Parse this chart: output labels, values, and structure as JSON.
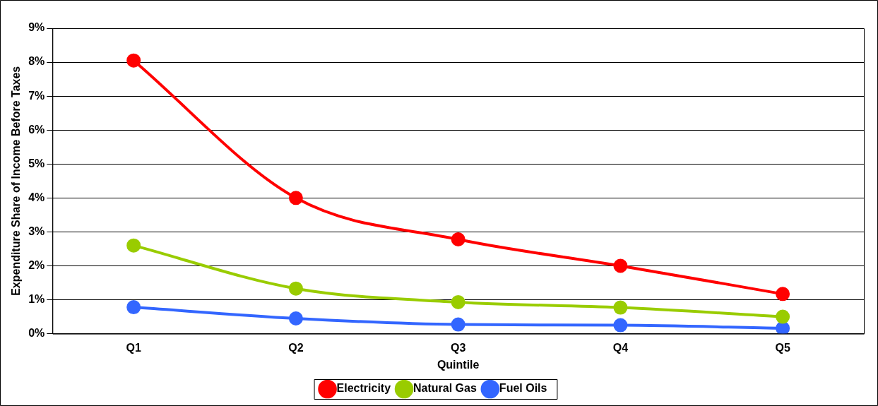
{
  "chart_data": {
    "type": "line",
    "xlabel": "Quintile",
    "ylabel": "Expenditure Share of Income Before Taxes",
    "categories": [
      "Q1",
      "Q2",
      "Q3",
      "Q4",
      "Q5"
    ],
    "series": [
      {
        "name": "Electricity",
        "color": "#ff0000",
        "values": [
          8.05,
          4.0,
          2.78,
          2.0,
          1.17
        ]
      },
      {
        "name": "Natural Gas",
        "color": "#99cc00",
        "values": [
          2.6,
          1.33,
          0.93,
          0.77,
          0.5
        ]
      },
      {
        "name": "Fuel Oils",
        "color": "#3366ff",
        "values": [
          0.78,
          0.45,
          0.27,
          0.25,
          0.16
        ]
      }
    ],
    "ylim": [
      0,
      9
    ],
    "yticks": [
      {
        "value": 0,
        "label": "0%"
      },
      {
        "value": 1,
        "label": "1%"
      },
      {
        "value": 2,
        "label": "2%"
      },
      {
        "value": 3,
        "label": "3%"
      },
      {
        "value": 4,
        "label": "4%"
      },
      {
        "value": 5,
        "label": "5%"
      },
      {
        "value": 6,
        "label": "6%"
      },
      {
        "value": 7,
        "label": "7%"
      },
      {
        "value": 8,
        "label": "8%"
      },
      {
        "value": 9,
        "label": "9%"
      }
    ],
    "grid": "y",
    "legend": "bottom",
    "marker": "circle",
    "line_style": "solid"
  }
}
